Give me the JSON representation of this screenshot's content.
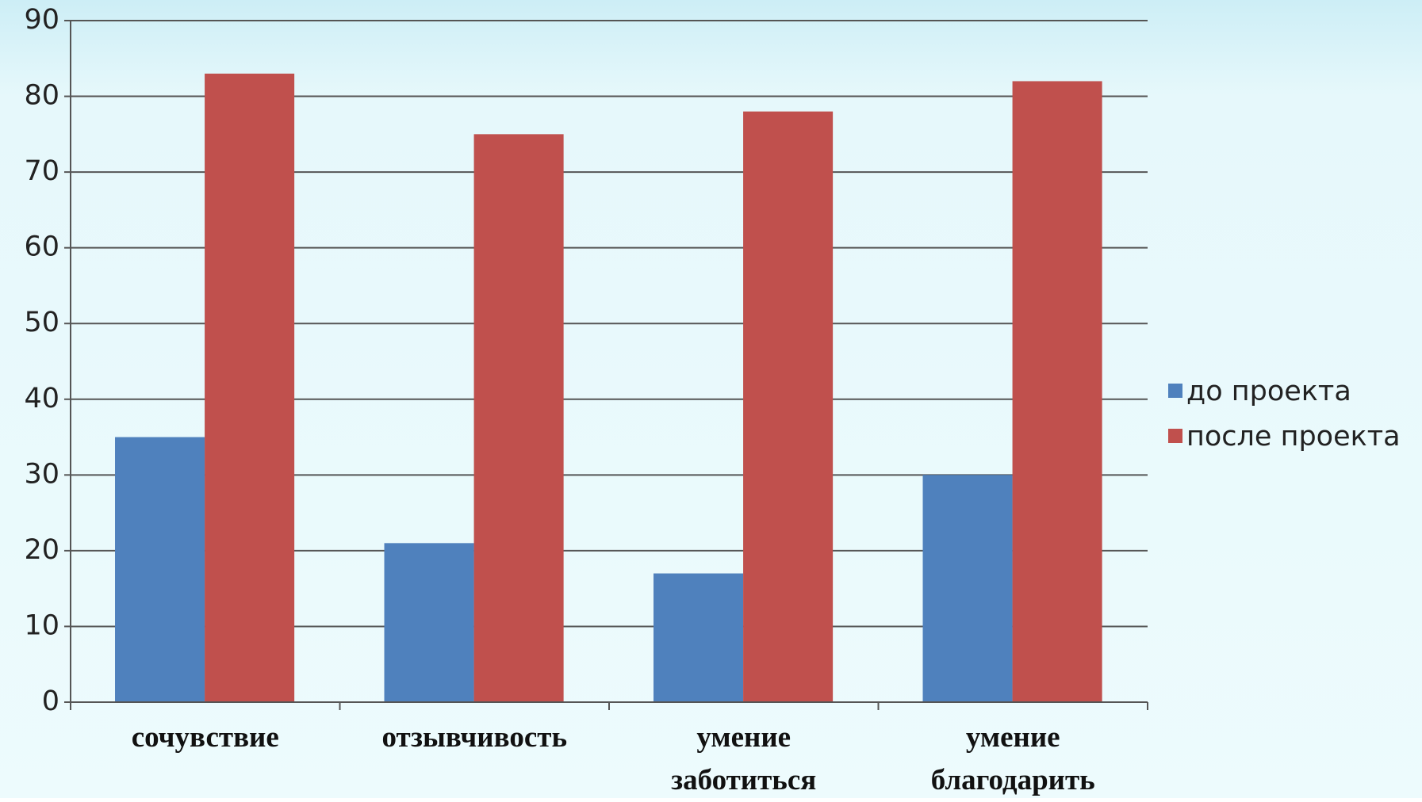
{
  "chart_data": {
    "type": "bar",
    "categories": [
      "сочувствие",
      "отзывчивость",
      "умение заботиться",
      "умение благодарить"
    ],
    "series": [
      {
        "name": "до проекта",
        "color": "#4f81bd",
        "values": [
          35,
          21,
          17,
          30
        ]
      },
      {
        "name": "после проекта",
        "color": "#c0504d",
        "values": [
          83,
          75,
          78,
          82
        ]
      }
    ],
    "ylim": [
      0,
      90
    ],
    "yticks": [
      0,
      10,
      20,
      30,
      40,
      50,
      60,
      70,
      80,
      90
    ],
    "grid": true,
    "legend": "right"
  }
}
